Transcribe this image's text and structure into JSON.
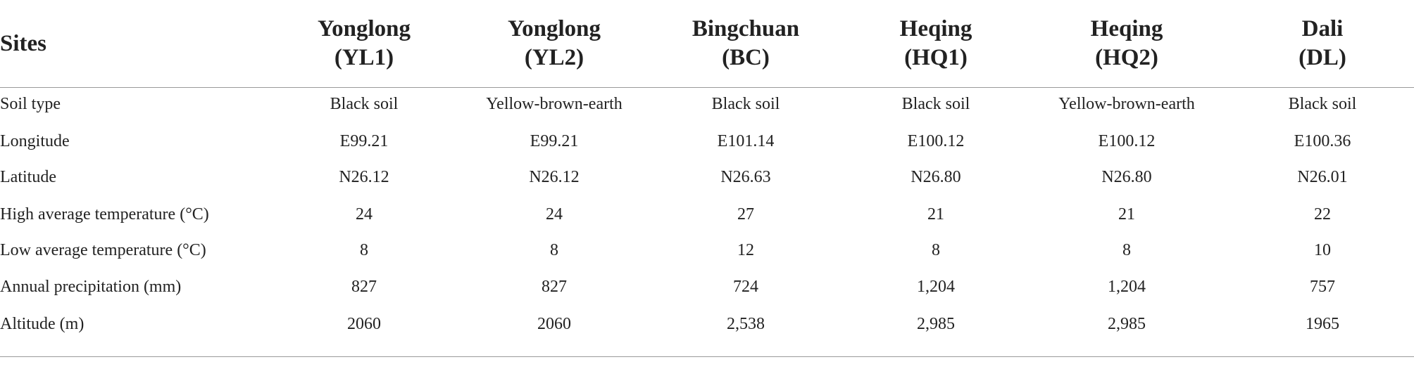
{
  "table": {
    "header": {
      "label": "Sites",
      "columns": [
        {
          "name": "Yonglong",
          "code": "(YL1)"
        },
        {
          "name": "Yonglong",
          "code": "(YL2)"
        },
        {
          "name": "Bingchuan",
          "code": "(BC)"
        },
        {
          "name": "Heqing",
          "code": "(HQ1)"
        },
        {
          "name": "Heqing",
          "code": "(HQ2)"
        },
        {
          "name": "Dali",
          "code": "(DL)"
        }
      ]
    },
    "rows": [
      {
        "label": "Soil type",
        "cells": [
          "Black soil",
          "Yellow-brown-earth",
          "Black soil",
          "Black soil",
          "Yellow-brown-earth",
          "Black soil"
        ]
      },
      {
        "label": "Longitude",
        "cells": [
          "E99.21",
          "E99.21",
          "E101.14",
          "E100.12",
          "E100.12",
          "E100.36"
        ]
      },
      {
        "label": "Latitude",
        "cells": [
          "N26.12",
          "N26.12",
          "N26.63",
          "N26.80",
          "N26.80",
          "N26.01"
        ]
      },
      {
        "label": "High average temperature (°C)",
        "cells": [
          "24",
          "24",
          "27",
          "21",
          "21",
          "22"
        ]
      },
      {
        "label": "Low average temperature (°C)",
        "cells": [
          "8",
          "8",
          "12",
          "8",
          "8",
          "10"
        ]
      },
      {
        "label": "Annual precipitation (mm)",
        "cells": [
          "827",
          "827",
          "724",
          "1,204",
          "1,204",
          "757"
        ]
      },
      {
        "label": "Altitude (m)",
        "cells": [
          "2060",
          "2060",
          "2,538",
          "2,985",
          "2,985",
          "1965"
        ]
      }
    ]
  }
}
